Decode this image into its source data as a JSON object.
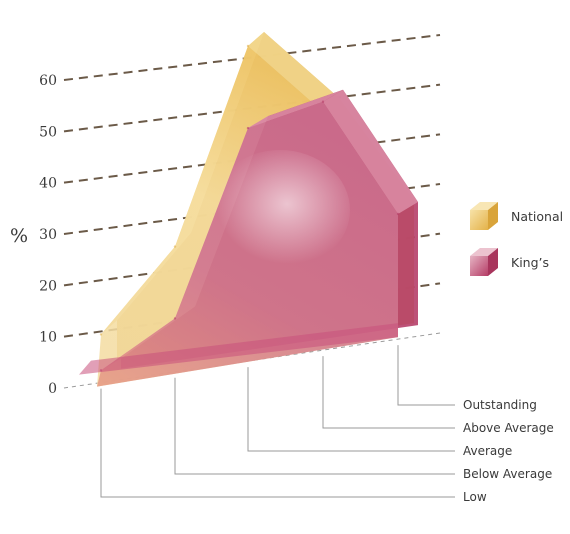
{
  "chart_data": {
    "type": "area",
    "ylabel": "%",
    "ylim": [
      0,
      60
    ],
    "yticks": [
      "0",
      "10",
      "20",
      "30",
      "40",
      "50",
      "60"
    ],
    "categories": [
      "Low",
      "Below Average",
      "Average",
      "Above Average",
      "Outstanding"
    ],
    "series": [
      {
        "name": "National",
        "values": [
          9,
          24,
          61,
          46,
          24
        ],
        "color": "#efc870"
      },
      {
        "name": "King’s",
        "values": [
          2,
          10,
          45,
          48,
          24
        ],
        "color": "#c44f78"
      }
    ],
    "legend": "right",
    "grid": true
  }
}
